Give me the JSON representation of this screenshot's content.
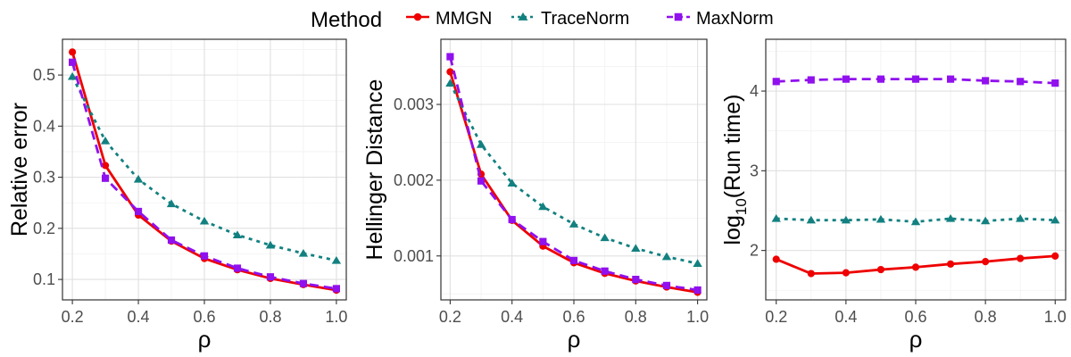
{
  "legend": {
    "title": "Method",
    "items": [
      {
        "name": "MMGN",
        "color": "#EE0000",
        "marker": "circle",
        "dash": "solid"
      },
      {
        "name": "TraceNorm",
        "color": "#138080",
        "marker": "triangle",
        "dash": "dotted"
      },
      {
        "name": "MaxNorm",
        "color": "#9010EE",
        "marker": "square",
        "dash": "dashed"
      }
    ]
  },
  "chart_data": [
    {
      "type": "line",
      "title": "",
      "xlabel": "ρ",
      "ylabel": "Relative error",
      "xlim": [
        0.17,
        1.03
      ],
      "ylim": [
        0.06,
        0.57
      ],
      "xticks": [
        0.2,
        0.4,
        0.6,
        0.8,
        1.0
      ],
      "xtick_labels": [
        "0.2",
        "0.4",
        "0.6",
        "0.8",
        "1.0"
      ],
      "yticks": [
        0.1,
        0.2,
        0.3,
        0.4,
        0.5
      ],
      "ytick_labels": [
        "0.1",
        "0.2",
        "0.3",
        "0.4",
        "0.5"
      ],
      "x": [
        0.2,
        0.3,
        0.4,
        0.5,
        0.6,
        0.7,
        0.8,
        0.9,
        1.0
      ],
      "series": [
        {
          "name": "MMGN",
          "values": [
            0.545,
            0.323,
            0.226,
            0.175,
            0.141,
            0.119,
            0.102,
            0.09,
            0.079
          ]
        },
        {
          "name": "TraceNorm",
          "values": [
            0.497,
            0.371,
            0.296,
            0.248,
            0.214,
            0.187,
            0.167,
            0.151,
            0.137
          ]
        },
        {
          "name": "MaxNorm",
          "values": [
            0.525,
            0.298,
            0.233,
            0.177,
            0.146,
            0.122,
            0.105,
            0.092,
            0.082
          ]
        }
      ]
    },
    {
      "type": "line",
      "title": "",
      "xlabel": "ρ",
      "ylabel": "Hellinger Distance",
      "xlim": [
        0.17,
        1.03
      ],
      "ylim": [
        0.00042,
        0.00386
      ],
      "xticks": [
        0.2,
        0.4,
        0.6,
        0.8,
        1.0
      ],
      "xtick_labels": [
        "0.2",
        "0.4",
        "0.6",
        "0.8",
        "1.0"
      ],
      "yticks": [
        0.001,
        0.002,
        0.003
      ],
      "ytick_labels": [
        "0.001",
        "0.002",
        "0.003"
      ],
      "x": [
        0.2,
        0.3,
        0.4,
        0.5,
        0.6,
        0.7,
        0.8,
        0.9,
        1.0
      ],
      "series": [
        {
          "name": "MMGN",
          "values": [
            0.00343,
            0.00208,
            0.00147,
            0.00113,
            0.00091,
            0.00077,
            0.00067,
            0.00059,
            0.00052
          ]
        },
        {
          "name": "TraceNorm",
          "values": [
            0.00328,
            0.00247,
            0.00196,
            0.00165,
            0.00142,
            0.00124,
            0.0011,
            0.00099,
            0.0009
          ]
        },
        {
          "name": "MaxNorm",
          "values": [
            0.00363,
            0.00199,
            0.00148,
            0.00119,
            0.00094,
            0.0008,
            0.00069,
            0.00061,
            0.00055
          ]
        }
      ]
    },
    {
      "type": "line",
      "title": "",
      "xlabel": "ρ",
      "ylabel": "log10(Run time)",
      "ylabel_parts": [
        "log",
        "10",
        "(Run time)"
      ],
      "xlim": [
        0.17,
        1.03
      ],
      "ylim": [
        1.38,
        4.65
      ],
      "xticks": [
        0.2,
        0.4,
        0.6,
        0.8,
        1.0
      ],
      "xtick_labels": [
        "0.2",
        "0.4",
        "0.6",
        "0.8",
        "1.0"
      ],
      "yticks": [
        2,
        3,
        4
      ],
      "ytick_labels": [
        "2",
        "3",
        "4"
      ],
      "x": [
        0.2,
        0.3,
        0.4,
        0.5,
        0.6,
        0.7,
        0.8,
        0.9,
        1.0
      ],
      "series": [
        {
          "name": "MMGN",
          "values": [
            1.89,
            1.71,
            1.72,
            1.76,
            1.79,
            1.83,
            1.86,
            1.9,
            1.93
          ]
        },
        {
          "name": "TraceNorm",
          "values": [
            2.4,
            2.38,
            2.38,
            2.39,
            2.36,
            2.4,
            2.37,
            2.4,
            2.38
          ]
        },
        {
          "name": "MaxNorm",
          "values": [
            4.12,
            4.14,
            4.15,
            4.15,
            4.15,
            4.15,
            4.13,
            4.12,
            4.1
          ]
        }
      ]
    }
  ]
}
